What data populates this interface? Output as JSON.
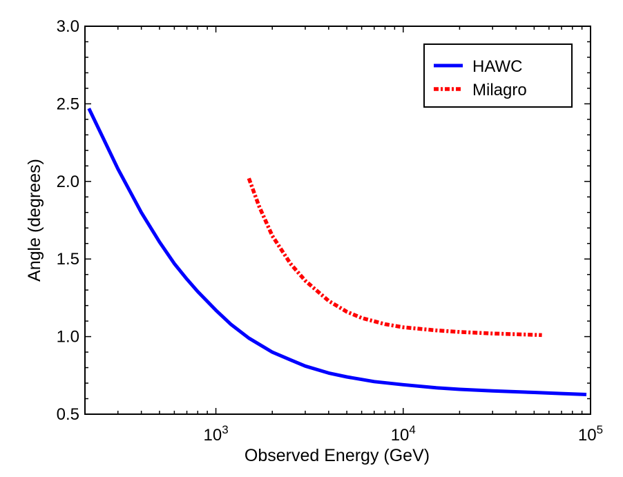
{
  "chart_data": {
    "type": "line",
    "xlabel": "Observed Energy (GeV)",
    "ylabel": "Angle (degrees)",
    "x_scale": "log",
    "xlim": [
      200,
      100000
    ],
    "ylim": [
      0.5,
      3.0
    ],
    "y_ticks": [
      {
        "value": 0.5,
        "label": "0.5"
      },
      {
        "value": 1.0,
        "label": "1.0"
      },
      {
        "value": 1.5,
        "label": "1.5"
      },
      {
        "value": 2.0,
        "label": "2.0"
      },
      {
        "value": 2.5,
        "label": "2.5"
      },
      {
        "value": 3.0,
        "label": "3.0"
      }
    ],
    "x_ticks": [
      {
        "value": 1000,
        "base": "10",
        "exp": "3"
      },
      {
        "value": 10000,
        "base": "10",
        "exp": "4"
      },
      {
        "value": 100000,
        "base": "10",
        "exp": "5"
      }
    ],
    "grid": false,
    "legend_position": "top-right",
    "series": [
      {
        "name": "HAWC",
        "color": "#0000ff",
        "style": "solid",
        "x": [
          210,
          250,
          300,
          350,
          400,
          500,
          600,
          700,
          800,
          1000,
          1200,
          1500,
          2000,
          2500,
          3000,
          4000,
          5000,
          7000,
          10000,
          15000,
          20000,
          30000,
          50000,
          70000,
          95000
        ],
        "y": [
          2.47,
          2.28,
          2.08,
          1.93,
          1.8,
          1.61,
          1.47,
          1.37,
          1.29,
          1.17,
          1.08,
          0.99,
          0.9,
          0.85,
          0.81,
          0.765,
          0.74,
          0.71,
          0.69,
          0.67,
          0.66,
          0.65,
          0.64,
          0.633,
          0.627
        ]
      },
      {
        "name": "Milagro",
        "color": "#ff0000",
        "style": "dash-dot",
        "x": [
          1500,
          1700,
          2000,
          2500,
          3000,
          4000,
          5000,
          6000,
          8000,
          10000,
          15000,
          20000,
          30000,
          40000,
          55000
        ],
        "y": [
          2.02,
          1.84,
          1.65,
          1.47,
          1.36,
          1.23,
          1.16,
          1.12,
          1.08,
          1.06,
          1.04,
          1.03,
          1.02,
          1.015,
          1.01
        ]
      }
    ]
  }
}
